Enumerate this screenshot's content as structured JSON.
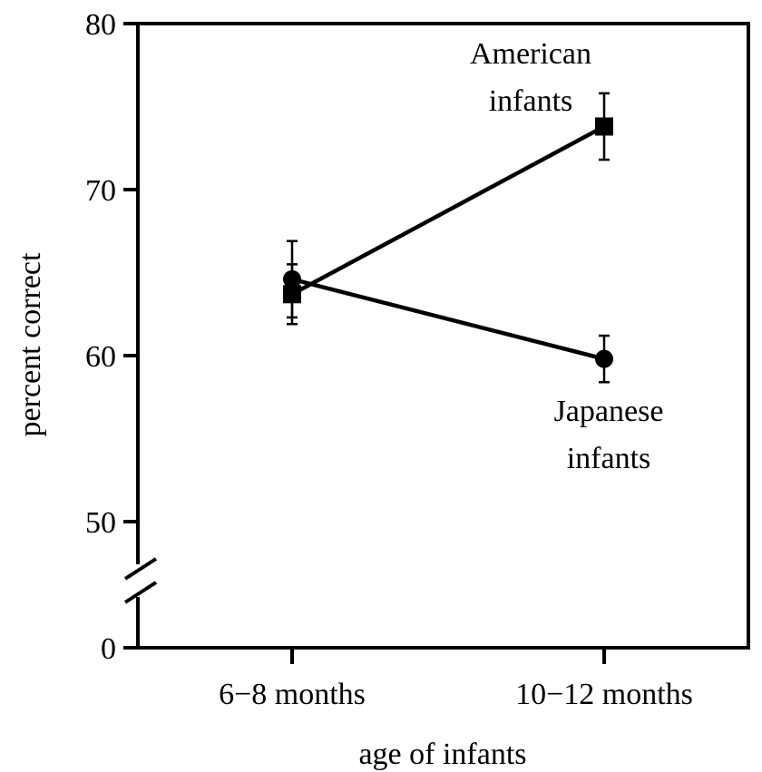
{
  "chart_data": {
    "type": "line",
    "title": "",
    "xlabel": "age of infants",
    "ylabel": "percent correct",
    "categories": [
      "6−8 months",
      "10−12 months"
    ],
    "y_ticks": [
      {
        "value": 80,
        "label": "80"
      },
      {
        "value": 70,
        "label": "70"
      },
      {
        "value": 60,
        "label": "60"
      },
      {
        "value": 50,
        "label": "50"
      },
      {
        "value": 0,
        "label": "0"
      }
    ],
    "ylim": [
      45,
      80
    ],
    "y_axis_break": true,
    "grid": false,
    "series": [
      {
        "name": "American infants",
        "marker": "square",
        "values": [
          63.7,
          73.8
        ],
        "errors": [
          1.8,
          2.0
        ],
        "annotation": [
          "American",
          "infants"
        ]
      },
      {
        "name": "Japanese infants",
        "marker": "circle",
        "values": [
          64.6,
          59.8
        ],
        "errors": [
          2.3,
          1.4
        ],
        "annotation": [
          "Japanese",
          "infants"
        ]
      }
    ]
  }
}
